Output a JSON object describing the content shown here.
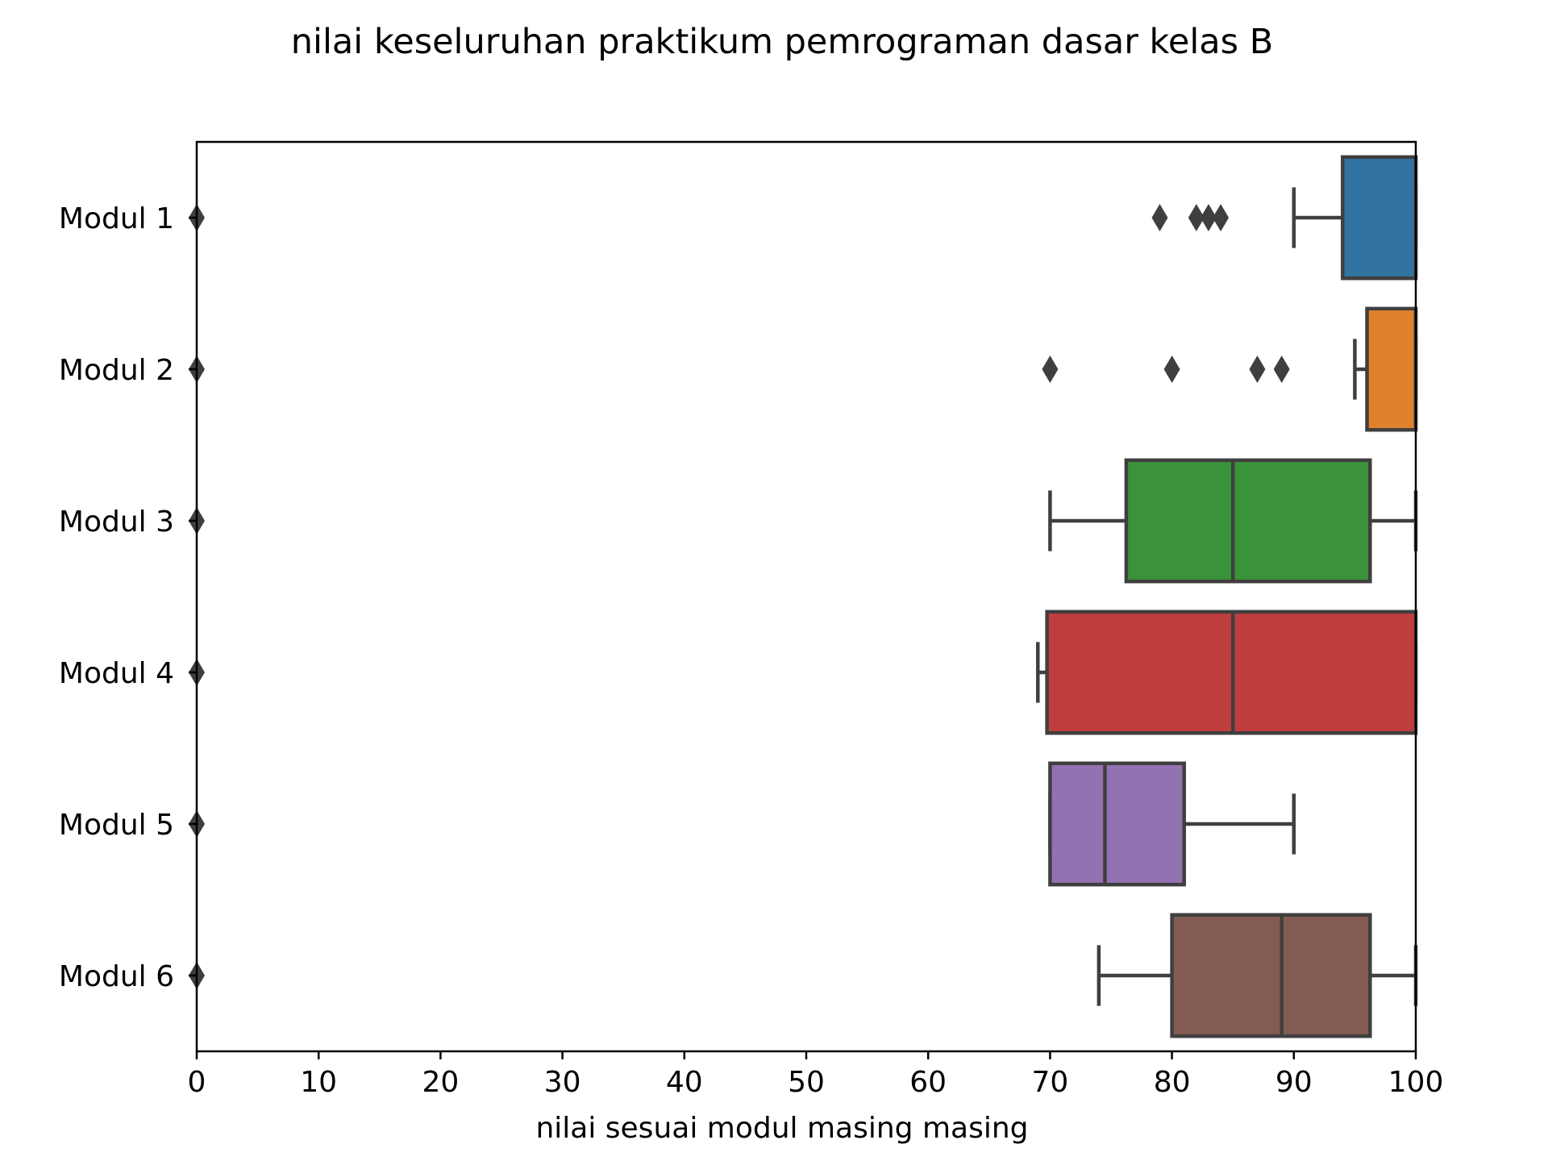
{
  "chart_data": {
    "type": "box",
    "orientation": "horizontal",
    "title": "nilai keseluruhan praktikum pemrograman dasar kelas B",
    "xlabel": "nilai sesuai modul masing masing",
    "ylabel": "",
    "xlim": [
      0,
      100
    ],
    "xticks": [
      0,
      10,
      20,
      30,
      40,
      50,
      60,
      70,
      80,
      90,
      100
    ],
    "grid": false,
    "legend": "none",
    "series": [
      {
        "category": "Modul 1",
        "color": "#3274a1",
        "whisker_low": 90,
        "q1": 94,
        "median": 100,
        "q3": 100,
        "whisker_high": 100,
        "outliers": [
          0,
          79,
          82,
          83,
          84
        ]
      },
      {
        "category": "Modul 2",
        "color": "#e1812c",
        "whisker_low": 95,
        "q1": 96,
        "median": 100,
        "q3": 100,
        "whisker_high": 100,
        "outliers": [
          0,
          70,
          80,
          87,
          89
        ]
      },
      {
        "category": "Modul 3",
        "color": "#3a923a",
        "whisker_low": 70,
        "q1": 76.25,
        "median": 85,
        "q3": 96.25,
        "whisker_high": 100,
        "outliers": [
          0
        ]
      },
      {
        "category": "Modul 4",
        "color": "#c03d3e",
        "whisker_low": 69,
        "q1": 69.75,
        "median": 85,
        "q3": 100,
        "whisker_high": 100,
        "outliers": [
          0
        ]
      },
      {
        "category": "Modul 5",
        "color": "#9372b2",
        "whisker_low": 70,
        "q1": 70,
        "median": 74.5,
        "q3": 81,
        "whisker_high": 90,
        "outliers": [
          0
        ]
      },
      {
        "category": "Modul 6",
        "color": "#845b53",
        "whisker_low": 74,
        "q1": 80,
        "median": 89,
        "q3": 96.25,
        "whisker_high": 100,
        "outliers": [
          0
        ]
      }
    ]
  }
}
